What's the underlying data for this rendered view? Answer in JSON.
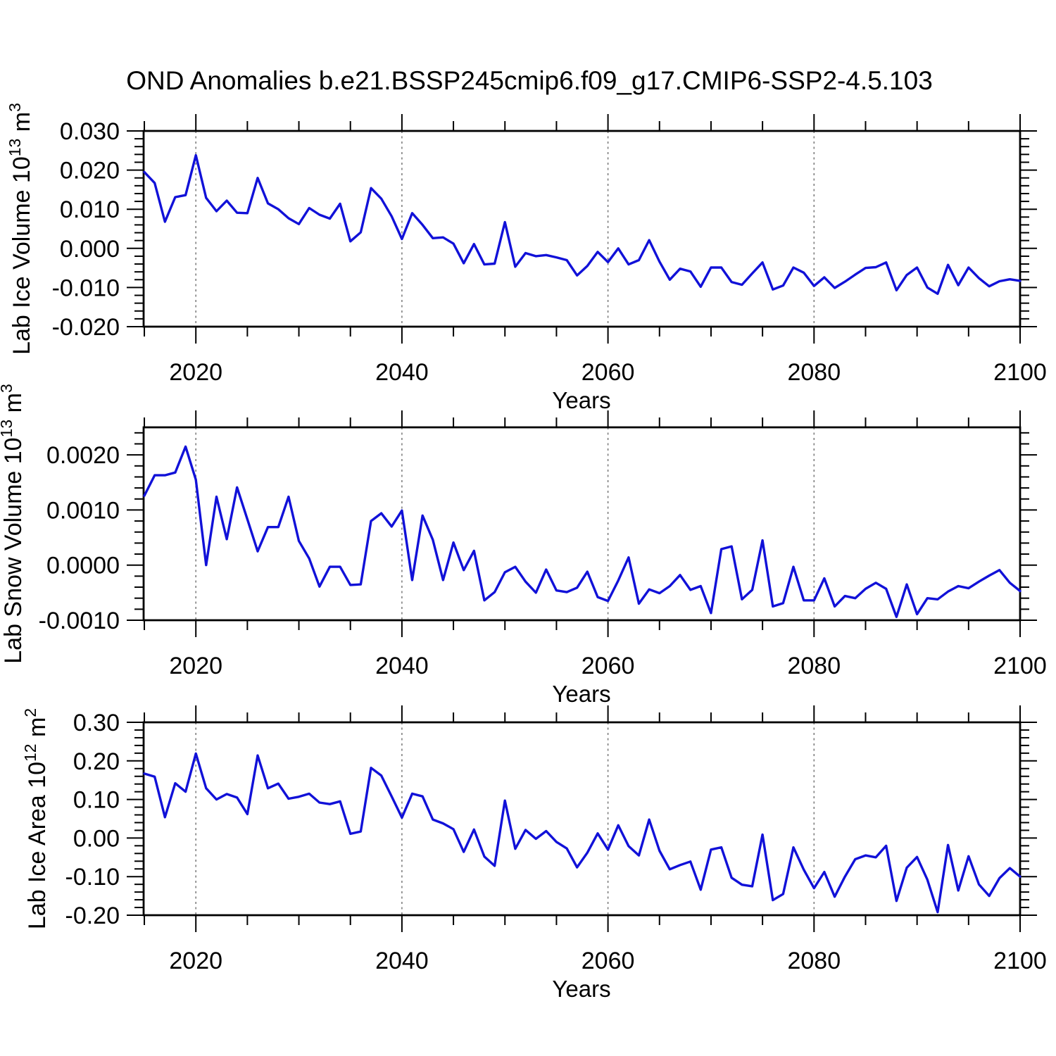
{
  "title": "OND Anomalies b.e21.BSSP245cmip6.f09_g17.CMIP6-SSP2-4.5.103",
  "chart_data": {
    "type": "line",
    "title": "OND Anomalies b.e21.BSSP245cmip6.f09_g17.CMIP6-SSP2-4.5.103",
    "xlabel": "Years",
    "line_color": "#1111d8",
    "grid_color": "#777777",
    "x_start": 2015,
    "x_end": 2100,
    "x_step": 1,
    "xlim": [
      2014.93,
      2100
    ],
    "x_major_ticks": [
      2020,
      2040,
      2060,
      2080,
      2100
    ],
    "x_tick_labels": [
      "2020",
      "2040",
      "2060",
      "2080",
      "2100"
    ],
    "x_minor_step": 5,
    "grid_years": [
      2020,
      2040,
      2060,
      2080
    ],
    "legend": "none",
    "panels": [
      {
        "id": "lab-ice-volume",
        "ylabel_segments": [
          {
            "t": "Lab Ice Volume 10"
          },
          {
            "t": "13",
            "sup": true
          },
          {
            "t": " m"
          },
          {
            "t": "3",
            "sup": true
          }
        ],
        "ylabel_x": 42,
        "ylim": [
          -0.02,
          0.03
        ],
        "y_major_ticks": [
          0.03,
          0.02,
          0.01,
          0.0,
          -0.01,
          -0.02
        ],
        "y_tick_labels": [
          "0.030",
          "0.020",
          "0.010",
          "0.000",
          "-0.010",
          "-0.020"
        ],
        "y_minor_step": 0.002,
        "values": [
          0.0195,
          0.0167,
          0.0068,
          0.0131,
          0.0136,
          0.0238,
          0.0129,
          0.0095,
          0.0122,
          0.0091,
          0.009,
          0.018,
          0.0115,
          0.01,
          0.0077,
          0.0062,
          0.0103,
          0.0086,
          0.0076,
          0.0114,
          0.0018,
          0.0041,
          0.0154,
          0.0127,
          0.0082,
          0.0024,
          0.009,
          0.006,
          0.0026,
          0.0028,
          0.0012,
          -0.0038,
          0.0011,
          -0.0041,
          -0.0039,
          0.0067,
          -0.0047,
          -0.0012,
          -0.002,
          -0.0017,
          -0.0023,
          -0.003,
          -0.0069,
          -0.0045,
          -0.0009,
          -0.0035,
          0.0,
          -0.0041,
          -0.003,
          0.0021,
          -0.0034,
          -0.008,
          -0.0052,
          -0.0059,
          -0.0098,
          -0.0049,
          -0.0049,
          -0.0086,
          -0.0093,
          -0.0064,
          -0.0036,
          -0.0105,
          -0.0095,
          -0.0049,
          -0.0062,
          -0.0096,
          -0.0074,
          -0.0101,
          -0.0085,
          -0.0067,
          -0.005,
          -0.0048,
          -0.0036,
          -0.0107,
          -0.0068,
          -0.0049,
          -0.01,
          -0.0116,
          -0.0042,
          -0.0094,
          -0.0049,
          -0.0076,
          -0.0097,
          -0.0084,
          -0.0079,
          -0.0083
        ]
      },
      {
        "id": "lab-snow-volume",
        "ylabel_segments": [
          {
            "t": "Lab Snow Volume 10"
          },
          {
            "t": "13",
            "sup": true
          },
          {
            "t": " m"
          },
          {
            "t": "3",
            "sup": true
          }
        ],
        "ylabel_x": 30,
        "ylim": [
          -0.001,
          0.0025
        ],
        "y_major_ticks": [
          0.002,
          0.001,
          0.0,
          -0.001
        ],
        "y_tick_labels": [
          "0.0020",
          "0.0010",
          "0.0000",
          "-0.0010"
        ],
        "y_minor_step": 0.0002,
        "values": [
          0.00126,
          0.00163,
          0.00163,
          0.00168,
          0.00215,
          0.00155,
          0.0,
          0.00124,
          0.00047,
          0.00141,
          0.00083,
          0.00025,
          0.00069,
          0.00069,
          0.00124,
          0.00044,
          0.00012,
          -0.00039,
          -3e-05,
          -3e-05,
          -0.00036,
          -0.00035,
          0.0008,
          0.00094,
          0.0007,
          0.00099,
          -0.00027,
          0.0009,
          0.00046,
          -0.00027,
          0.00041,
          -9e-05,
          0.00026,
          -0.00064,
          -0.00049,
          -0.00013,
          -3e-05,
          -0.0003,
          -0.0005,
          -8e-05,
          -0.00046,
          -0.00049,
          -0.00041,
          -0.00012,
          -0.00058,
          -0.00065,
          -0.00028,
          0.00014,
          -0.0007,
          -0.00044,
          -0.00051,
          -0.00038,
          -0.00018,
          -0.00045,
          -0.00038,
          -0.00087,
          0.00029,
          0.00034,
          -0.00062,
          -0.00045,
          0.00045,
          -0.00075,
          -0.00069,
          -3e-05,
          -0.00064,
          -0.00064,
          -0.00024,
          -0.00075,
          -0.00056,
          -0.0006,
          -0.00043,
          -0.00032,
          -0.00043,
          -0.00094,
          -0.00035,
          -0.00089,
          -0.0006,
          -0.00062,
          -0.00048,
          -0.00038,
          -0.00042,
          -0.0003,
          -0.00019,
          -9e-05,
          -0.00032,
          -0.00047
        ]
      },
      {
        "id": "lab-ice-area",
        "ylabel_segments": [
          {
            "t": "Lab Ice Area 10"
          },
          {
            "t": "12",
            "sup": true
          },
          {
            "t": " m"
          },
          {
            "t": "2",
            "sup": true
          }
        ],
        "ylabel_x": 64,
        "ylim": [
          -0.2,
          0.3
        ],
        "y_major_ticks": [
          0.3,
          0.2,
          0.1,
          0.0,
          -0.1,
          -0.2
        ],
        "y_tick_labels": [
          "0.30",
          "0.20",
          "0.10",
          "0.00",
          "-0.10",
          "-0.20"
        ],
        "y_minor_step": 0.02,
        "values": [
          0.167,
          0.159,
          0.054,
          0.142,
          0.12,
          0.219,
          0.129,
          0.1,
          0.114,
          0.105,
          0.062,
          0.214,
          0.129,
          0.141,
          0.102,
          0.107,
          0.115,
          0.092,
          0.088,
          0.095,
          0.011,
          0.017,
          0.182,
          0.162,
          0.108,
          0.053,
          0.115,
          0.108,
          0.048,
          0.038,
          0.023,
          -0.036,
          0.022,
          -0.048,
          -0.072,
          0.097,
          -0.028,
          0.021,
          -0.002,
          0.018,
          -0.01,
          -0.027,
          -0.076,
          -0.038,
          0.012,
          -0.03,
          0.033,
          -0.021,
          -0.045,
          0.048,
          -0.033,
          -0.081,
          -0.07,
          -0.061,
          -0.134,
          -0.03,
          -0.024,
          -0.103,
          -0.121,
          -0.125,
          0.009,
          -0.161,
          -0.145,
          -0.024,
          -0.082,
          -0.13,
          -0.088,
          -0.152,
          -0.1,
          -0.055,
          -0.045,
          -0.05,
          -0.02,
          -0.163,
          -0.077,
          -0.049,
          -0.108,
          -0.192,
          -0.018,
          -0.136,
          -0.047,
          -0.12,
          -0.15,
          -0.104,
          -0.078,
          -0.1
        ]
      }
    ]
  }
}
